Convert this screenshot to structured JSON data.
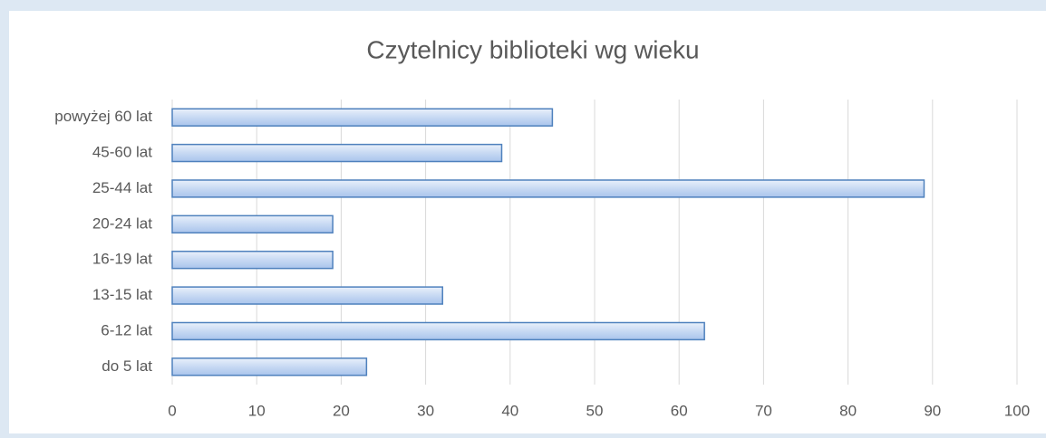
{
  "chart_data": {
    "type": "bar",
    "orientation": "horizontal",
    "title": "Czytelnicy biblioteki wg wieku",
    "categories": [
      "do 5 lat",
      "6-12 lat",
      "13-15 lat",
      "16-19 lat",
      "20-24 lat",
      "25-44 lat",
      "45-60 lat",
      "powyżej 60 lat"
    ],
    "values": [
      23,
      63,
      32,
      19,
      19,
      89,
      39,
      45
    ],
    "color": "#4f81bd",
    "xlim": [
      0,
      100
    ],
    "xticks": [
      0,
      10,
      20,
      30,
      40,
      50,
      60,
      70,
      80,
      90,
      100
    ],
    "grid": true
  }
}
